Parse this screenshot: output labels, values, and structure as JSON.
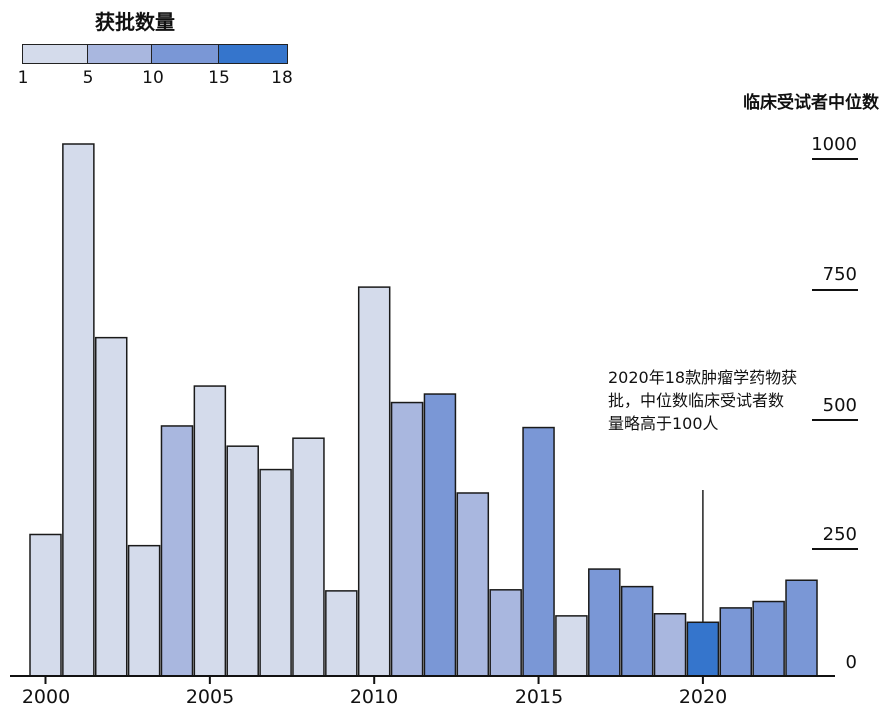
{
  "legend": {
    "title": "获批数量",
    "ticks": [
      "1",
      "5",
      "10",
      "15",
      "18"
    ],
    "colors": [
      "#d4dbeb",
      "#a9b7df",
      "#7a97d6",
      "#3575cc"
    ]
  },
  "annotation": {
    "text": "2020年18款肿瘤学药物获批，中位数临床受试者数量略高于100人",
    "year": 2020
  },
  "chart_data": {
    "type": "bar",
    "title": "",
    "xlabel": "",
    "ylabel": "临床受试者中位数",
    "ylim": [
      0,
      1000
    ],
    "yticks": [
      "0",
      "250",
      "500",
      "750",
      "1000"
    ],
    "xticks": [
      "2000",
      "2005",
      "2010",
      "2015",
      "2020"
    ],
    "x": [
      2000,
      2001,
      2002,
      2003,
      2004,
      2005,
      2006,
      2007,
      2008,
      2009,
      2010,
      2011,
      2012,
      2013,
      2014,
      2015,
      2016,
      2017,
      2018,
      2019,
      2020,
      2021,
      2022,
      2023
    ],
    "values": [
      266,
      1000,
      636,
      245,
      470,
      545,
      432,
      388,
      447,
      160,
      731,
      514,
      530,
      344,
      162,
      467,
      113,
      201,
      168,
      117,
      101,
      128,
      140,
      180
    ],
    "approvals_bin": [
      1,
      1,
      1,
      1,
      2,
      1,
      1,
      1,
      1,
      1,
      1,
      2,
      3,
      2,
      2,
      3,
      1,
      3,
      3,
      2,
      4,
      3,
      3,
      3
    ],
    "grid": false
  }
}
